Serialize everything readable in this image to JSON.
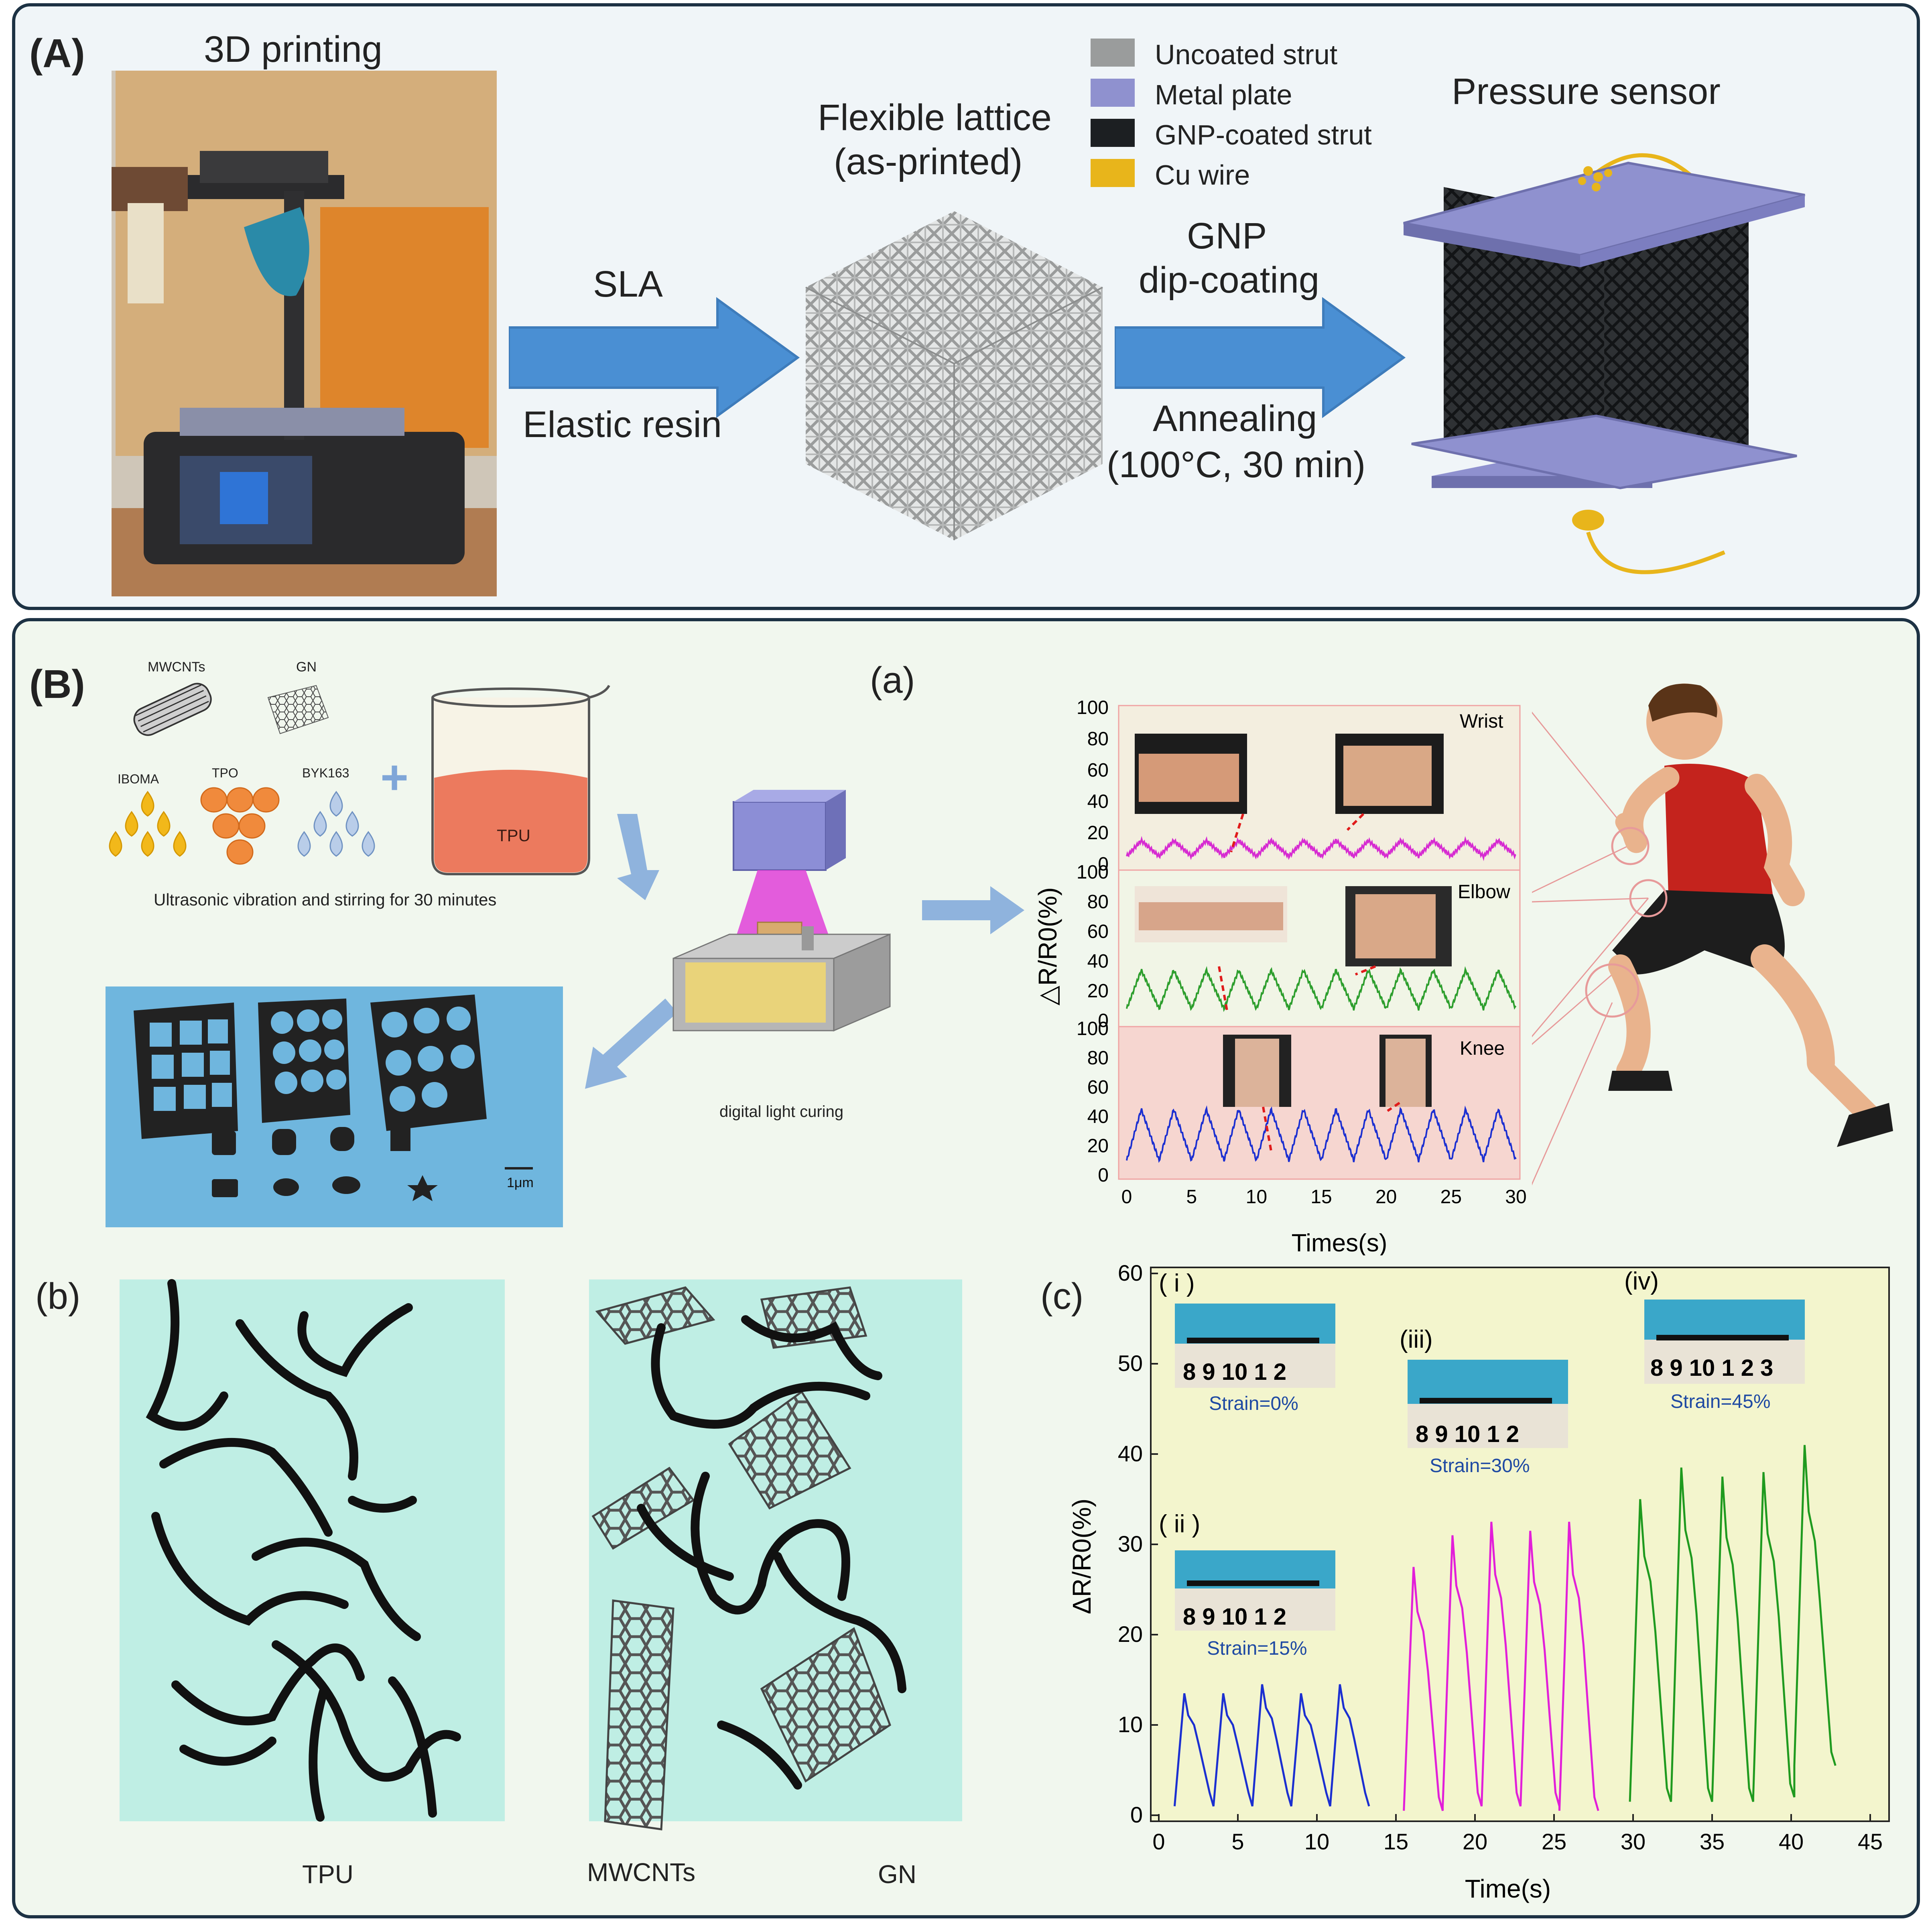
{
  "panel_a": {
    "label": "(A)",
    "printing_title": "3D printing",
    "arrow1_top": "SLA",
    "arrow1_bottom": "Elastic resin",
    "lattice_title_line1": "Flexible lattice",
    "lattice_title_line2": "(as-printed)",
    "arrow2_top_line1": "GNP",
    "arrow2_top_line2": "dip-coating",
    "arrow2_bottom_line1": "Annealing",
    "arrow2_bottom_line2": "(100°C, 30 min)",
    "sensor_title": "Pressure sensor",
    "legend": [
      {
        "label": "Uncoated strut",
        "color": "#9a9c9c"
      },
      {
        "label": "Metal plate",
        "color": "#8f91cf"
      },
      {
        "label": "GNP-coated strut",
        "color": "#1c1f22"
      },
      {
        "label": "Cu wire",
        "color": "#e8b51b"
      }
    ]
  },
  "panel_b": {
    "label": "(B)",
    "materials": {
      "mwcnts": "MWCNTs",
      "gn": "GN",
      "iboma": "IBOMA",
      "tpo": "TPO",
      "byk": "BYK163",
      "plus": "+",
      "tpu": "TPU",
      "caption": "Ultrasonic vibration and stirring for 30 minutes"
    },
    "dlp_caption": "digital light curing",
    "scale_bar": "1μm",
    "sub_a": {
      "label": "(a)",
      "ylabel": "△R/R0(%)",
      "xlabel": "Times(s)",
      "rows": [
        "Wrist",
        "Elbow",
        "Knee"
      ],
      "yticks": [
        "100",
        "80",
        "60",
        "40",
        "20",
        "0"
      ],
      "xticks": [
        "0",
        "5",
        "10",
        "15",
        "20",
        "25",
        "30"
      ]
    },
    "sub_b": {
      "label": "(b)",
      "legend_tpu": "TPU",
      "legend_mwcnts": "MWCNTs",
      "legend_gn": "GN"
    },
    "sub_c": {
      "label": "(c)",
      "ylabel": "ΔR/R0(%)",
      "xlabel": "Time(s)",
      "yticks": [
        "60",
        "50",
        "40",
        "30",
        "20",
        "10",
        "0"
      ],
      "xticks": [
        "0",
        "5",
        "10",
        "15",
        "20",
        "25",
        "30",
        "35",
        "40",
        "45"
      ],
      "insets": [
        {
          "tag": "( i )",
          "strain": "Strain=0%",
          "ruler": "8 9 10 1 2"
        },
        {
          "tag": "( ii )",
          "strain": "Strain=15%",
          "ruler": "8 9 10 1 2"
        },
        {
          "tag": "(iii)",
          "strain": "Strain=30%",
          "ruler": "8 9 10 1 2"
        },
        {
          "tag": "(iv)",
          "strain": "Strain=45%",
          "ruler": "8 9 10 1 2 3"
        }
      ]
    }
  },
  "chart_data": [
    {
      "type": "line",
      "xlabel": "Times(s)",
      "ylabel": "△R/R0(%)",
      "xlim": [
        0,
        30
      ],
      "ylim": [
        0,
        100
      ],
      "series": [
        {
          "name": "Wrist",
          "color": "#d62bd1",
          "period": 2.5,
          "peak": 15,
          "base": 5
        },
        {
          "name": "Elbow",
          "color": "#2d9e2d",
          "period": 2.5,
          "peak": 34,
          "base": 8
        },
        {
          "name": "Knee",
          "color": "#1b2fd1",
          "period": 2.5,
          "peak": 45,
          "base": 10
        }
      ]
    },
    {
      "type": "line",
      "xlabel": "Time(s)",
      "ylabel": "ΔR/R0(%)",
      "xlim": [
        0,
        45
      ],
      "ylim": [
        0,
        60
      ],
      "series": [
        {
          "name": "Strain=15%",
          "color": "#1b2fd1",
          "x_start": 1,
          "x_end": 13.3,
          "peaks": [
            13.5,
            13.5,
            14.5,
            13.5,
            14.5
          ],
          "mins": [
            1,
            1,
            1,
            1,
            1
          ]
        },
        {
          "name": "Strain=30%",
          "color": "#e21fd9",
          "x_start": 15.5,
          "x_end": 27.8,
          "peaks": [
            27.5,
            31,
            32.5,
            31.5,
            32.5
          ],
          "mins": [
            0.5,
            1,
            1,
            1,
            0.5
          ]
        },
        {
          "name": "Strain=45%",
          "color": "#1f9a1f",
          "x_start": 29.8,
          "x_end": 42.8,
          "peaks": [
            35,
            38.5,
            37.5,
            38,
            41
          ],
          "mins": [
            1.5,
            1.5,
            1.5,
            2,
            5.5
          ]
        }
      ]
    }
  ]
}
